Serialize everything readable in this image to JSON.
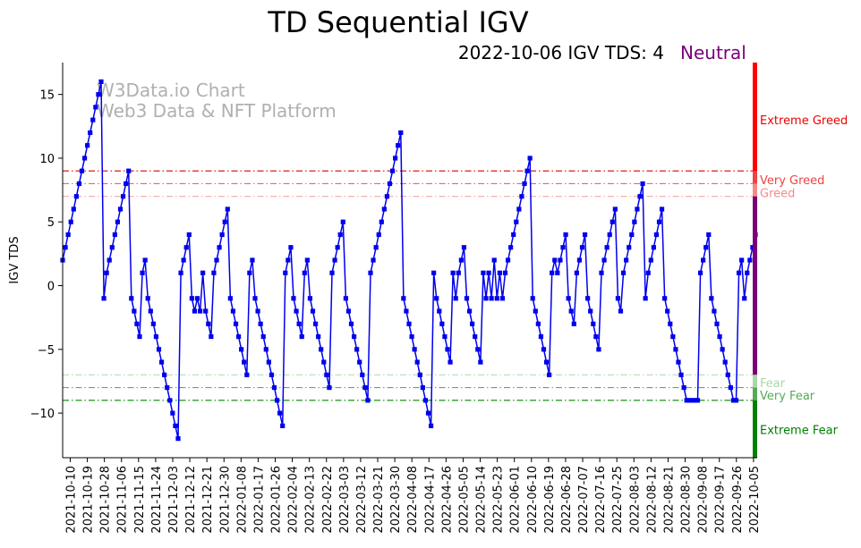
{
  "chart_data": {
    "type": "line",
    "title": "TD Sequential IGV",
    "subtitle": "2022-10-06 IGV TDS: 4",
    "status": "Neutral",
    "ylabel": "IGV TDS",
    "xlabel": "",
    "ylim": [
      -13.5,
      17.5
    ],
    "yticks": [
      -10,
      -5,
      0,
      5,
      10,
      15
    ],
    "grid": false,
    "watermark": [
      "W3Data.io Chart",
      "Web3 Data & NFT Platform"
    ],
    "x_start": "2021-10-06",
    "x_end": "2022-10-06",
    "xtick_labels": [
      "2021-10-10",
      "2021-10-19",
      "2021-10-28",
      "2021-11-06",
      "2021-11-15",
      "2021-11-24",
      "2021-12-03",
      "2021-12-12",
      "2021-12-21",
      "2021-12-30",
      "2022-01-08",
      "2022-01-17",
      "2022-01-26",
      "2022-02-04",
      "2022-02-13",
      "2022-02-22",
      "2022-03-03",
      "2022-03-12",
      "2022-03-21",
      "2022-03-30",
      "2022-04-08",
      "2022-04-17",
      "2022-04-26",
      "2022-05-05",
      "2022-05-14",
      "2022-05-23",
      "2022-06-01",
      "2022-06-10",
      "2022-06-19",
      "2022-06-28",
      "2022-07-07",
      "2022-07-16",
      "2022-07-25",
      "2022-08-03",
      "2022-08-12",
      "2022-08-21",
      "2022-08-30",
      "2022-09-08",
      "2022-09-17",
      "2022-09-26",
      "2022-10-05"
    ],
    "series": [
      {
        "name": "IGV TDS",
        "color": "#0000ee",
        "values": [
          2,
          3,
          4,
          5,
          6,
          7,
          8,
          9,
          10,
          11,
          12,
          13,
          14,
          15,
          16,
          -1,
          1,
          2,
          3,
          4,
          5,
          6,
          7,
          8,
          9,
          -1,
          -2,
          -3,
          -4,
          1,
          2,
          -1,
          -2,
          -3,
          -4,
          -5,
          -6,
          -7,
          -8,
          -9,
          -10,
          -11,
          -12,
          1,
          2,
          3,
          4,
          -1,
          -2,
          -1,
          -2,
          1,
          -2,
          -3,
          -4,
          1,
          2,
          3,
          4,
          5,
          6,
          -1,
          -2,
          -3,
          -4,
          -5,
          -6,
          -7,
          1,
          2,
          -1,
          -2,
          -3,
          -4,
          -5,
          -6,
          -7,
          -8,
          -9,
          -10,
          -11,
          1,
          2,
          3,
          -1,
          -2,
          -3,
          -4,
          1,
          2,
          -1,
          -2,
          -3,
          -4,
          -5,
          -6,
          -7,
          -8,
          1,
          2,
          3,
          4,
          5,
          -1,
          -2,
          -3,
          -4,
          -5,
          -6,
          -7,
          -8,
          -9,
          1,
          2,
          3,
          4,
          5,
          6,
          7,
          8,
          9,
          10,
          11,
          12,
          -1,
          -2,
          -3,
          -4,
          -5,
          -6,
          -7,
          -8,
          -9,
          -10,
          -11,
          1,
          -1,
          -2,
          -3,
          -4,
          -5,
          -6,
          1,
          -1,
          1,
          2,
          3,
          -1,
          -2,
          -3,
          -4,
          -5,
          -6,
          1,
          -1,
          1,
          -1,
          2,
          -1,
          1,
          -1,
          1,
          2,
          3,
          4,
          5,
          6,
          7,
          8,
          9,
          10,
          -1,
          -2,
          -3,
          -4,
          -5,
          -6,
          -7,
          1,
          2,
          1,
          2,
          3,
          4,
          -1,
          -2,
          -3,
          1,
          2,
          3,
          4,
          -1,
          -2,
          -3,
          -4,
          -5,
          1,
          2,
          3,
          4,
          5,
          6,
          -1,
          -2,
          1,
          2,
          3,
          4,
          5,
          6,
          7,
          8,
          -1,
          1,
          2,
          3,
          4,
          5,
          6,
          -1,
          -2,
          -3,
          -4,
          -5,
          -6,
          -7,
          -8,
          -9,
          -9,
          -9,
          -9,
          -9,
          1,
          2,
          3,
          4,
          -1,
          -2,
          -3,
          -4,
          -5,
          -6,
          -7,
          -8,
          -9,
          -9,
          1,
          2,
          -1,
          1,
          2,
          3,
          4
        ]
      }
    ],
    "levels": [
      {
        "label": "Very Greed",
        "value": 9,
        "color": "#dd0000"
      },
      {
        "label": "Greed",
        "value": 8,
        "color": "#ee6666"
      },
      {
        "label": "",
        "value": 7,
        "color": "#f4aaaa"
      },
      {
        "label": "",
        "value": -7,
        "color": "#b5dcb5"
      },
      {
        "label": "Fear",
        "value": -8,
        "color": "#66aa66"
      },
      {
        "label": "Very Fear",
        "value": -9,
        "color": "#008800"
      }
    ],
    "zones": [
      {
        "label": "Extreme Greed",
        "from": 7,
        "to": 17.5,
        "color": "#ff0000"
      },
      {
        "label": "Very Greed",
        "from": 7,
        "to": 9,
        "color": "#ee4444"
      },
      {
        "label": "Greed",
        "from": 7,
        "to": 8,
        "color": "#f48a8a"
      },
      {
        "label": "Neutral",
        "from": -7,
        "to": 7,
        "color": "#7a007a"
      },
      {
        "label": "Fear",
        "from": -8,
        "to": -7,
        "color": "#a8d8a8"
      },
      {
        "label": "Very Fear",
        "from": -9,
        "to": -8,
        "color": "#55aa55"
      },
      {
        "label": "Extreme Fear",
        "from": -13.5,
        "to": -9,
        "color": "#008000"
      }
    ],
    "colors": {
      "neutral_text": "#7a007a",
      "watermark": "#b0b0b0"
    }
  }
}
